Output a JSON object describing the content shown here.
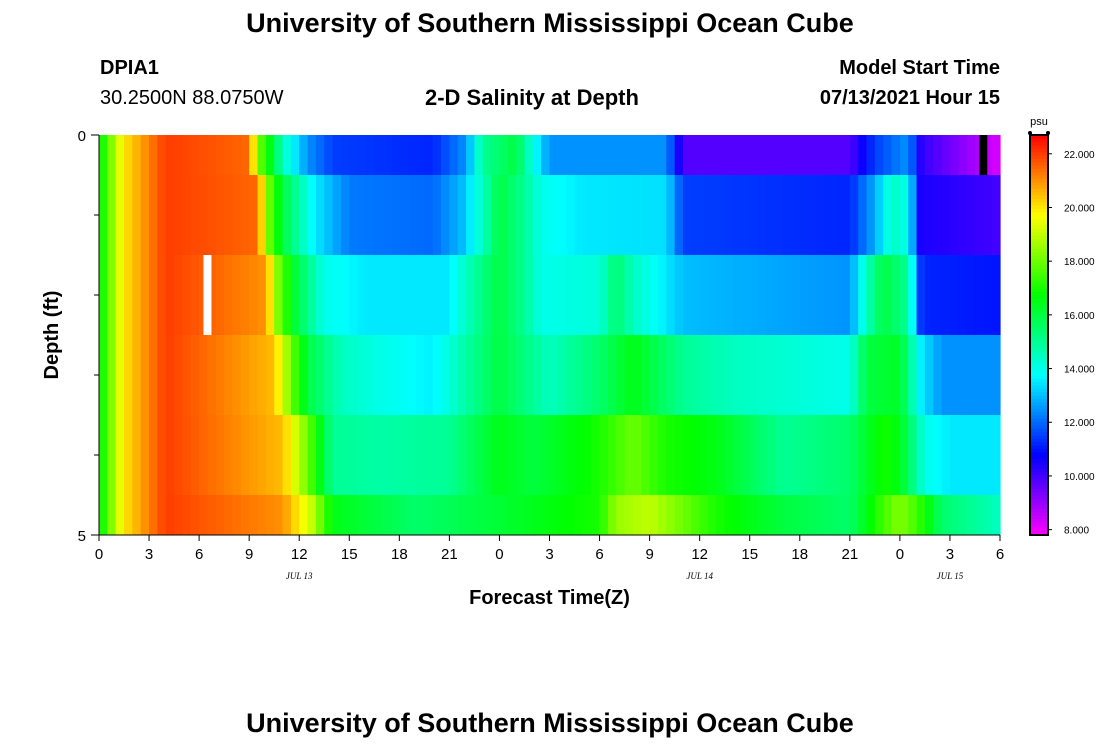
{
  "page": {
    "title": "University of Southern Mississippi Ocean Cube",
    "station_id": "DPIA1",
    "station_coords": "30.2500N  88.0750W",
    "chart_title": "2-D Salinity at Depth",
    "model_start_label": "Model Start Time",
    "model_start_value": "07/13/2021 Hour 15",
    "footer_title": "University of Southern Mississippi Ocean Cube"
  },
  "chart_data": {
    "type": "heatmap",
    "title": "2-D Salinity at Depth",
    "xlabel": "Forecast Time(Z)",
    "ylabel": "Depth (ft)",
    "ylim": [
      0,
      5
    ],
    "y_tick_labels": [
      "0",
      "5"
    ],
    "x_hours_range": [
      0,
      54
    ],
    "x_tick_labels": [
      "0",
      "3",
      "6",
      "9",
      "12",
      "15",
      "18",
      "21",
      "0",
      "3",
      "6",
      "9",
      "12",
      "15",
      "18",
      "21",
      "0",
      "3",
      "6"
    ],
    "date_labels": [
      {
        "text": "JUL 13",
        "hour": 12
      },
      {
        "text": "JUL 14",
        "hour": 36
      },
      {
        "text": "JUL 15",
        "hour": 51
      }
    ],
    "colorbar": {
      "unit": "psu",
      "min": 7.8,
      "max": 22.7,
      "tick_values": [
        8,
        10,
        12,
        14,
        16,
        18,
        20,
        22
      ],
      "tick_labels": [
        "8.000",
        "10.000",
        "12.000",
        "14.000",
        "16.000",
        "18.000",
        "20.000",
        "22.000"
      ]
    },
    "grid": {
      "hour_step": 0.5,
      "layers": [
        {
          "depth_range": [
            0,
            0.5
          ],
          "knots": [
            [
              0,
              16.5
            ],
            [
              1.5,
              20
            ],
            [
              4,
              22
            ],
            [
              9,
              21.5
            ],
            [
              9.6,
              18
            ],
            [
              10.5,
              16
            ],
            [
              11,
              14.5
            ],
            [
              12.5,
              12.5
            ],
            [
              14,
              11.5
            ],
            [
              20,
              11.2
            ],
            [
              22,
              12.5
            ],
            [
              23,
              15
            ],
            [
              25,
              16
            ],
            [
              26,
              14
            ],
            [
              27,
              12.5
            ],
            [
              34,
              12.5
            ],
            [
              35,
              9.8
            ],
            [
              45,
              9.8
            ],
            [
              46.5,
              11.5
            ],
            [
              48.5,
              12.5
            ],
            [
              49.3,
              10.2
            ],
            [
              54,
              8.2
            ]
          ]
        },
        {
          "depth_range": [
            0.5,
            1.5
          ],
          "knots": [
            [
              0,
              16.5
            ],
            [
              1.5,
              20
            ],
            [
              4,
              22
            ],
            [
              9.5,
              21.5
            ],
            [
              10.2,
              18
            ],
            [
              11,
              16
            ],
            [
              13,
              13.5
            ],
            [
              15,
              12.2
            ],
            [
              20,
              12
            ],
            [
              21.8,
              13
            ],
            [
              23,
              14.5
            ],
            [
              24,
              16
            ],
            [
              25.5,
              15
            ],
            [
              26.5,
              14
            ],
            [
              29,
              13.5
            ],
            [
              34,
              13.4
            ],
            [
              35,
              11.5
            ],
            [
              45,
              11.2
            ],
            [
              46.5,
              12.8
            ],
            [
              47.5,
              14.5
            ],
            [
              48.5,
              14
            ],
            [
              49.2,
              10.5
            ],
            [
              54,
              10
            ]
          ]
        },
        {
          "depth_range": [
            1.5,
            2.5
          ],
          "knots": [
            [
              0,
              16.5
            ],
            [
              1.5,
              20
            ],
            [
              4,
              22
            ],
            [
              10,
              21
            ],
            [
              10.8,
              18
            ],
            [
              11.8,
              16
            ],
            [
              13.5,
              14
            ],
            [
              16,
              13.5
            ],
            [
              21,
              13.5
            ],
            [
              22,
              14.5
            ],
            [
              24,
              16
            ],
            [
              25.5,
              15
            ],
            [
              26.5,
              14
            ],
            [
              30,
              14.2
            ],
            [
              31,
              15.5
            ],
            [
              32,
              14.5
            ],
            [
              35,
              13
            ],
            [
              45,
              12.5
            ],
            [
              46,
              14.5
            ],
            [
              47,
              16
            ],
            [
              48.5,
              15
            ],
            [
              49.3,
              11.2
            ],
            [
              54,
              11
            ]
          ]
        },
        {
          "depth_range": [
            2.5,
            3.5
          ],
          "knots": [
            [
              0,
              16.5
            ],
            [
              1.5,
              20
            ],
            [
              4,
              22
            ],
            [
              10.5,
              20.5
            ],
            [
              11.5,
              18
            ],
            [
              12.5,
              16
            ],
            [
              14.5,
              14.5
            ],
            [
              17,
              14
            ],
            [
              20,
              13.6
            ],
            [
              22,
              14.8
            ],
            [
              24,
              16
            ],
            [
              27,
              14.5
            ],
            [
              30,
              15.5
            ],
            [
              32,
              16.5
            ],
            [
              35,
              15
            ],
            [
              38,
              14.5
            ],
            [
              45,
              14
            ],
            [
              46,
              16
            ],
            [
              48,
              16.3
            ],
            [
              49.3,
              13.5
            ],
            [
              50.5,
              12.5
            ],
            [
              54,
              12.5
            ]
          ]
        },
        {
          "depth_range": [
            3.5,
            4.5
          ],
          "knots": [
            [
              0,
              16.5
            ],
            [
              1.5,
              20
            ],
            [
              4,
              22
            ],
            [
              11,
              20.5
            ],
            [
              12.5,
              18
            ],
            [
              14,
              15
            ],
            [
              17,
              14.8
            ],
            [
              21,
              15
            ],
            [
              24,
              16.5
            ],
            [
              26,
              16
            ],
            [
              30,
              17
            ],
            [
              32,
              18
            ],
            [
              34,
              17
            ],
            [
              37,
              16.5
            ],
            [
              41,
              15
            ],
            [
              45,
              15.5
            ],
            [
              47,
              17
            ],
            [
              48,
              16.5
            ],
            [
              49.5,
              14
            ],
            [
              51,
              13.5
            ],
            [
              54,
              13.5
            ]
          ]
        },
        {
          "depth_range": [
            4.5,
            5
          ],
          "knots": [
            [
              0,
              16.5
            ],
            [
              1.5,
              20
            ],
            [
              4,
              22
            ],
            [
              11,
              21
            ],
            [
              12.8,
              19
            ],
            [
              14,
              16.5
            ],
            [
              19,
              15.5
            ],
            [
              23,
              16
            ],
            [
              30,
              17
            ],
            [
              31,
              18.5
            ],
            [
              33,
              19
            ],
            [
              35,
              18
            ],
            [
              37,
              17
            ],
            [
              41,
              16
            ],
            [
              45,
              15.5
            ],
            [
              47,
              17.5
            ],
            [
              48,
              18.3
            ],
            [
              49,
              17.5
            ],
            [
              50.5,
              15.5
            ],
            [
              54,
              14.5
            ]
          ]
        }
      ]
    },
    "annotations": [
      {
        "type": "missing-data-bar",
        "color": "#ffffff",
        "hour": 6.5,
        "depth_range": [
          1.5,
          2.5
        ]
      },
      {
        "type": "missing-data-bar",
        "color": "#000000",
        "hour": 53,
        "depth_range": [
          0,
          0.5
        ]
      }
    ]
  }
}
